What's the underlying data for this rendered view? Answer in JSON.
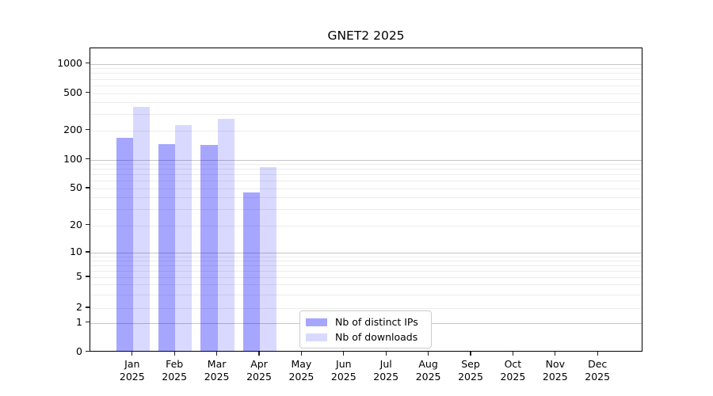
{
  "chart_data": {
    "type": "bar",
    "title": "GNET2 2025",
    "categories": [
      "Jan",
      "Feb",
      "Mar",
      "Apr",
      "May",
      "Jun",
      "Jul",
      "Aug",
      "Sep",
      "Oct",
      "Nov",
      "Dec"
    ],
    "category_year": "2025",
    "series": [
      {
        "name": "Nb of distinct IPs",
        "color": "#0000ff",
        "alpha": 0.35,
        "values": [
          168,
          144,
          141,
          45,
          0,
          0,
          0,
          0,
          0,
          0,
          0,
          0
        ]
      },
      {
        "name": "Nb of downloads",
        "color": "#0000ff",
        "alpha": 0.15,
        "values": [
          355,
          228,
          264,
          84,
          0,
          0,
          0,
          0,
          0,
          0,
          0,
          0
        ]
      }
    ],
    "yscale": "symlog",
    "yticks": [
      0,
      1,
      2,
      5,
      10,
      20,
      50,
      100,
      200,
      500,
      1000
    ],
    "minor_gridline_values": [
      2,
      3,
      4,
      5,
      6,
      7,
      8,
      9,
      20,
      30,
      40,
      50,
      60,
      70,
      80,
      90,
      200,
      300,
      400,
      500,
      600,
      700,
      800,
      900
    ],
    "major_gridline_values": [
      1,
      10,
      100,
      1000
    ],
    "ylim": [
      0,
      1500
    ],
    "xlabel": "",
    "ylabel": "",
    "grid": "horizontal major+minor",
    "legend_position": "lower center"
  }
}
